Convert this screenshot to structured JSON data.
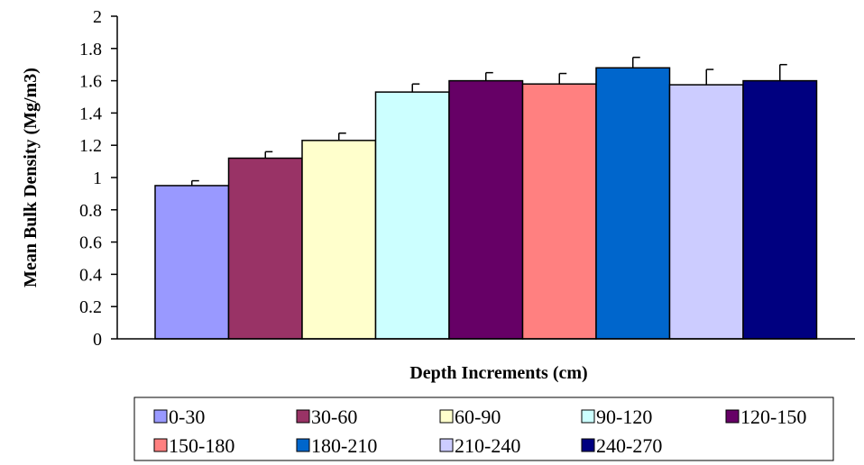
{
  "chart_data": {
    "type": "bar",
    "xlabel": "Depth Increments (cm)",
    "ylabel": "Mean Bulk Density (Mg/m3)",
    "ylim": [
      0,
      2
    ],
    "yticks": [
      "0",
      "0.2",
      "0.4",
      "0.6",
      "0.8",
      "1",
      "1.2",
      "1.4",
      "1.6",
      "1.8",
      "2"
    ],
    "grid": false,
    "legend_position": "bottom",
    "series": [
      {
        "name": "0-30",
        "value": 0.95,
        "error": 0.03,
        "color": "#9999FF"
      },
      {
        "name": "30-60",
        "value": 1.12,
        "error": 0.04,
        "color": "#993366"
      },
      {
        "name": "60-90",
        "value": 1.23,
        "error": 0.045,
        "color": "#FFFFCC"
      },
      {
        "name": "90-120",
        "value": 1.53,
        "error": 0.05,
        "color": "#CCFFFF"
      },
      {
        "name": "120-150",
        "value": 1.6,
        "error": 0.05,
        "color": "#660066"
      },
      {
        "name": "150-180",
        "value": 1.58,
        "error": 0.065,
        "color": "#FF8080"
      },
      {
        "name": "180-210",
        "value": 1.68,
        "error": 0.065,
        "color": "#0066CC"
      },
      {
        "name": "210-240",
        "value": 1.575,
        "error": 0.095,
        "color": "#CCCCFF"
      },
      {
        "name": "240-270",
        "value": 1.6,
        "error": 0.1,
        "color": "#000080"
      }
    ]
  }
}
